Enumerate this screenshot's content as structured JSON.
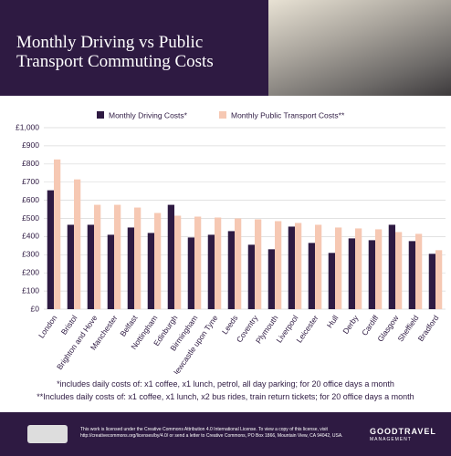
{
  "header": {
    "title": "Monthly Driving vs Public Transport Commuting Costs"
  },
  "chart_data": {
    "type": "bar",
    "categories": [
      "London",
      "Bristol",
      "Brighton and Hove",
      "Manchester",
      "Belfast",
      "Nottingham",
      "Edinburgh",
      "Birmingham",
      "Newcastle upon Tyne",
      "Leeds",
      "Coventry",
      "Plymouth",
      "Liverpool",
      "Leicester",
      "Hull",
      "Derby",
      "Cardiff",
      "Glasgow",
      "Sheffield",
      "Bradford"
    ],
    "series": [
      {
        "name": "Monthly Driving Costs*",
        "color": "#2e1a42",
        "values": [
          655,
          465,
          465,
          410,
          450,
          420,
          575,
          395,
          410,
          430,
          355,
          330,
          455,
          365,
          310,
          390,
          380,
          465,
          375,
          305
        ]
      },
      {
        "name": "Monthly Public Transport Costs**",
        "color": "#f6c8b3",
        "values": [
          825,
          715,
          575,
          575,
          560,
          530,
          515,
          510,
          505,
          500,
          495,
          485,
          475,
          465,
          450,
          445,
          440,
          425,
          415,
          325
        ]
      }
    ],
    "ylim": [
      0,
      1000
    ],
    "yticks": [
      {
        "value": 0,
        "label": "£0"
      },
      {
        "value": 100,
        "label": "£100"
      },
      {
        "value": 200,
        "label": "£200"
      },
      {
        "value": 300,
        "label": "£300"
      },
      {
        "value": 400,
        "label": "£400"
      },
      {
        "value": 500,
        "label": "£500"
      },
      {
        "value": 600,
        "label": "£600"
      },
      {
        "value": 700,
        "label": "£700"
      },
      {
        "value": 800,
        "label": "£800"
      },
      {
        "value": 900,
        "label": "£900"
      },
      {
        "value": 1000,
        "label": "£1,000"
      }
    ],
    "grid": true
  },
  "footnotes": [
    "*includes daily costs of: x1 coffee, x1 lunch, petrol, all day parking; for 20 office days a month",
    "**Includes daily costs of: x1 coffee, x1 lunch, x2 bus rides, train return tickets; for 20 office days a month"
  ],
  "footer": {
    "license": "This work is licensed under the Creative Commons Attribution 4.0 International License. To view a copy of this license, visit http://creativecommons.org/licenses/by/4.0/ or send a letter to Creative Commons, PO Box 1866, Mountain View, CA 94042, USA.",
    "logo_name": "GOODTRAVEL",
    "logo_sub": "MANAGEMENT"
  }
}
